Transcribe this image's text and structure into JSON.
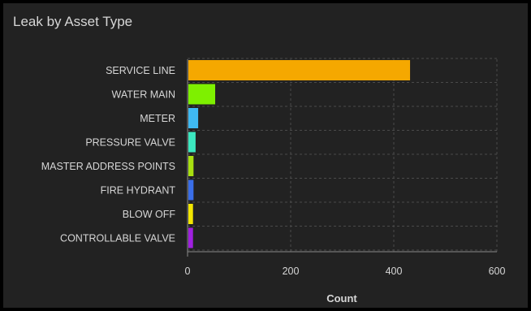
{
  "widget": {
    "title": "Leak by Asset Type"
  },
  "colors": {
    "panel_background": "#222222",
    "outer_background": "#000000",
    "text": "#d6d6d6",
    "grid": "#4a4a4a",
    "axis": "#8a8a8a"
  },
  "chart_data": {
    "type": "bar",
    "orientation": "horizontal",
    "title": "Leak by Asset Type",
    "xlabel": "Count",
    "ylabel": "",
    "xlim": [
      0,
      600
    ],
    "x_ticks": [
      0,
      200,
      400,
      600
    ],
    "grid": true,
    "categories": [
      "SERVICE LINE",
      "WATER MAIN",
      "METER",
      "PRESSURE VALVE",
      "MASTER ADDRESS POINTS",
      "FIRE HYDRANT",
      "BLOW OFF",
      "CONTROLLABLE VALVE"
    ],
    "values": [
      430,
      52,
      19,
      14,
      10,
      10,
      9,
      9
    ],
    "bar_colors": [
      "#f5a800",
      "#7ef000",
      "#3fb9f2",
      "#3ce8c0",
      "#a8e010",
      "#3a6ee8",
      "#f2e600",
      "#a020e0"
    ]
  }
}
